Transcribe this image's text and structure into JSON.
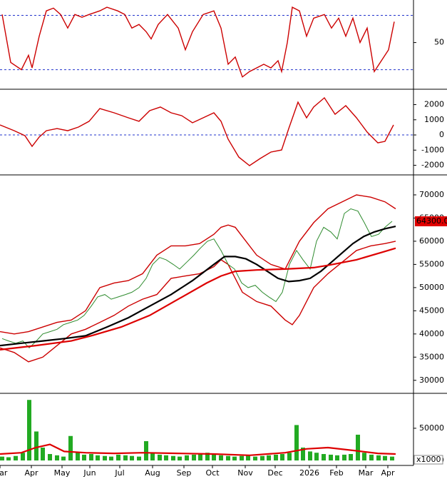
{
  "chart_data": [
    {
      "type": "line",
      "xlim": [
        0,
        580
      ],
      "ylim": [
        0,
        97
      ],
      "yticks": [
        50
      ],
      "reference_lines": [
        80,
        20
      ],
      "series": [
        {
          "color": "#cc0000",
          "x": [
            3,
            15,
            30,
            40,
            45,
            55,
            65,
            75,
            85,
            95,
            105,
            115,
            125,
            140,
            150,
            165,
            175,
            185,
            195,
            205,
            212,
            222,
            235,
            250,
            260,
            270,
            285,
            300,
            310,
            320,
            330,
            340,
            350,
            360,
            370,
            380,
            390,
            395,
            403,
            410,
            420,
            430,
            440,
            455,
            465,
            475,
            485,
            495,
            505,
            515,
            525,
            535,
            545,
            553
          ],
          "values": [
            81,
            28,
            20,
            36,
            22,
            57,
            85,
            88,
            81,
            66,
            81,
            78,
            81,
            85,
            89,
            85,
            81,
            66,
            70,
            62,
            54,
            70,
            81,
            66,
            42,
            62,
            81,
            85,
            66,
            26,
            34,
            12,
            18,
            22,
            26,
            22,
            30,
            18,
            50,
            89,
            85,
            57,
            77,
            81,
            66,
            77,
            57,
            77,
            50,
            66,
            18,
            30,
            42,
            73
          ]
        }
      ]
    },
    {
      "type": "line",
      "xlim": [
        0,
        580
      ],
      "ylim": [
        -2540,
        2920
      ],
      "yticks": [
        -2000,
        -1000,
        0,
        1000,
        2000
      ],
      "reference_lines": [
        0
      ],
      "series": [
        {
          "color": "#cc0000",
          "x": [
            0,
            20,
            35,
            45,
            55,
            65,
            80,
            95,
            110,
            125,
            140,
            160,
            180,
            195,
            210,
            225,
            240,
            255,
            270,
            285,
            300,
            310,
            320,
            335,
            350,
            365,
            380,
            395,
            405,
            418,
            430,
            440,
            455,
            470,
            485,
            500,
            515,
            530,
            540,
            552
          ],
          "values": [
            660,
            280,
            -50,
            -750,
            -140,
            280,
            420,
            280,
            520,
            900,
            1740,
            1460,
            1130,
            900,
            1600,
            1840,
            1460,
            1270,
            800,
            1130,
            1460,
            900,
            -280,
            -1460,
            -2020,
            -1550,
            -1130,
            -990,
            420,
            2160,
            1130,
            1840,
            2450,
            1360,
            1930,
            1130,
            190,
            -520,
            -420,
            660
          ]
        }
      ]
    },
    {
      "type": "line",
      "xlim": [
        0,
        580
      ],
      "ylim": [
        27500,
        74000
      ],
      "yticks": [
        30000,
        35000,
        40000,
        45000,
        50000,
        55000,
        60000,
        65000,
        70000
      ],
      "last_value": {
        "value": 64300,
        "label": "64300.00"
      },
      "series": [
        {
          "color": "#cc0000",
          "x": [
            0,
            20,
            40,
            60,
            80,
            100,
            120,
            140,
            160,
            180,
            200,
            220,
            240,
            260,
            280,
            300,
            310,
            320,
            330,
            340,
            360,
            380,
            400,
            410,
            420,
            440,
            460,
            480,
            500,
            520,
            540,
            555
          ],
          "values": [
            40500,
            40000,
            40500,
            41500,
            42500,
            43000,
            45000,
            50000,
            51000,
            51500,
            53000,
            57000,
            59000,
            59000,
            59500,
            61500,
            63000,
            63500,
            63000,
            61000,
            57000,
            55000,
            54000,
            57000,
            60000,
            64000,
            67000,
            68500,
            70000,
            69500,
            68500,
            67000
          ]
        },
        {
          "color": "#cc0000",
          "x": [
            0,
            20,
            40,
            60,
            80,
            100,
            120,
            140,
            160,
            180,
            200,
            220,
            240,
            260,
            280,
            300,
            310,
            320,
            330,
            340,
            360,
            380,
            400,
            410,
            420,
            440,
            460,
            480,
            500,
            520,
            540,
            555
          ],
          "values": [
            37000,
            36000,
            34000,
            35000,
            37500,
            40000,
            41000,
            42500,
            44000,
            46000,
            47500,
            48500,
            52000,
            52500,
            53000,
            54500,
            56000,
            55000,
            52000,
            49000,
            47000,
            46000,
            43000,
            42000,
            44000,
            50000,
            53000,
            55500,
            58000,
            59000,
            59500,
            60000
          ]
        },
        {
          "color": "#2e8b2e",
          "x": [
            3,
            12,
            22,
            32,
            41,
            51,
            60,
            70,
            80,
            89,
            99,
            109,
            118,
            128,
            137,
            147,
            156,
            166,
            176,
            185,
            195,
            205,
            214,
            224,
            233,
            243,
            252,
            262,
            272,
            281,
            291,
            300,
            310,
            320,
            329,
            339,
            348,
            358,
            368,
            377,
            387,
            396,
            406,
            416,
            425,
            435,
            444,
            454,
            464,
            473,
            483,
            492,
            502,
            511,
            521,
            531,
            540,
            550
          ],
          "values": [
            39000,
            38500,
            38000,
            38500,
            37000,
            38500,
            40000,
            40500,
            41000,
            42000,
            42500,
            43000,
            44000,
            46000,
            48000,
            48500,
            47500,
            48000,
            48500,
            49000,
            50000,
            52000,
            55000,
            56500,
            56000,
            55000,
            54000,
            55500,
            57000,
            58500,
            60000,
            60500,
            58000,
            55000,
            54000,
            51000,
            50000,
            50500,
            49000,
            48000,
            47000,
            49000,
            55000,
            58000,
            56000,
            54000,
            60000,
            63000,
            62000,
            60500,
            66000,
            67000,
            66500,
            64000,
            61000,
            61500,
            63000,
            64300
          ]
        },
        {
          "color": "#000000",
          "x": [
            0,
            30,
            60,
            90,
            120,
            150,
            180,
            210,
            240,
            270,
            300,
            315,
            330,
            345,
            360,
            375,
            390,
            405,
            420,
            435,
            450,
            465,
            480,
            495,
            510,
            525,
            540,
            555
          ],
          "values": [
            37500,
            38000,
            38500,
            39000,
            39600,
            41500,
            43500,
            46000,
            48500,
            51500,
            55000,
            56700,
            56700,
            56200,
            55000,
            53500,
            52000,
            51300,
            51500,
            52000,
            53500,
            55500,
            57500,
            59500,
            61000,
            62000,
            62700,
            63200
          ]
        },
        {
          "color": "#dd0000",
          "x": [
            0,
            50,
            100,
            130,
            170,
            210,
            250,
            290,
            310,
            330,
            360,
            400,
            440,
            460,
            500,
            540,
            555
          ],
          "values": [
            36600,
            37500,
            38500,
            39700,
            41500,
            44000,
            47500,
            51000,
            52500,
            53500,
            53800,
            54000,
            54300,
            54800,
            56000,
            57800,
            58500
          ]
        }
      ]
    },
    {
      "type": "bar",
      "xlim": [
        0,
        580
      ],
      "ylim": [
        -5500,
        102000
      ],
      "yticks": [
        0,
        50000
      ],
      "unit_label": "x1000",
      "color": "#22aa22",
      "x": [
        3,
        12,
        22,
        32,
        41,
        51,
        60,
        70,
        80,
        89,
        99,
        109,
        118,
        128,
        137,
        147,
        156,
        166,
        176,
        185,
        195,
        205,
        214,
        224,
        233,
        243,
        252,
        262,
        272,
        281,
        291,
        300,
        310,
        320,
        329,
        339,
        348,
        358,
        368,
        377,
        387,
        396,
        406,
        416,
        425,
        435,
        444,
        454,
        464,
        473,
        483,
        492,
        502,
        511,
        521,
        531,
        540,
        550
      ],
      "values": [
        6000,
        5000,
        7000,
        12000,
        94000,
        45000,
        20000,
        10000,
        8000,
        6000,
        38000,
        12000,
        9000,
        10000,
        8000,
        7000,
        6000,
        9000,
        8000,
        7000,
        6000,
        30000,
        12000,
        9000,
        8000,
        7000,
        6000,
        8000,
        9000,
        10000,
        12000,
        9000,
        8000,
        7000,
        6000,
        7000,
        8000,
        6000,
        7000,
        8000,
        9000,
        10000,
        12000,
        55000,
        20000,
        14000,
        12000,
        10000,
        9000,
        8000,
        9000,
        10000,
        40000,
        12000,
        9000,
        8000,
        7000,
        6000
      ],
      "series": [
        {
          "color": "#dd0000",
          "x": [
            0,
            30,
            50,
            70,
            90,
            120,
            160,
            200,
            250,
            300,
            350,
            400,
            430,
            460,
            500,
            530,
            555
          ],
          "values": [
            10000,
            12000,
            20000,
            25000,
            14000,
            12000,
            11000,
            12000,
            11000,
            10000,
            8000,
            12000,
            18000,
            20000,
            15000,
            11000,
            10000
          ]
        }
      ],
      "xticks": [
        {
          "value": 0,
          "label": "Mar"
        },
        {
          "value": 44,
          "label": "Apr"
        },
        {
          "value": 87,
          "label": "May"
        },
        {
          "value": 126,
          "label": "Jun"
        },
        {
          "value": 168,
          "label": "Jul"
        },
        {
          "value": 214,
          "label": "Aug"
        },
        {
          "value": 258,
          "label": "Sep"
        },
        {
          "value": 298,
          "label": "Oct"
        },
        {
          "value": 344,
          "label": "Nov"
        },
        {
          "value": 386,
          "label": "Dec"
        },
        {
          "value": 434,
          "label": "2026"
        },
        {
          "value": 472,
          "label": "Feb"
        },
        {
          "value": 513,
          "label": "Mar"
        },
        {
          "value": 544,
          "label": "Apr"
        }
      ]
    }
  ]
}
